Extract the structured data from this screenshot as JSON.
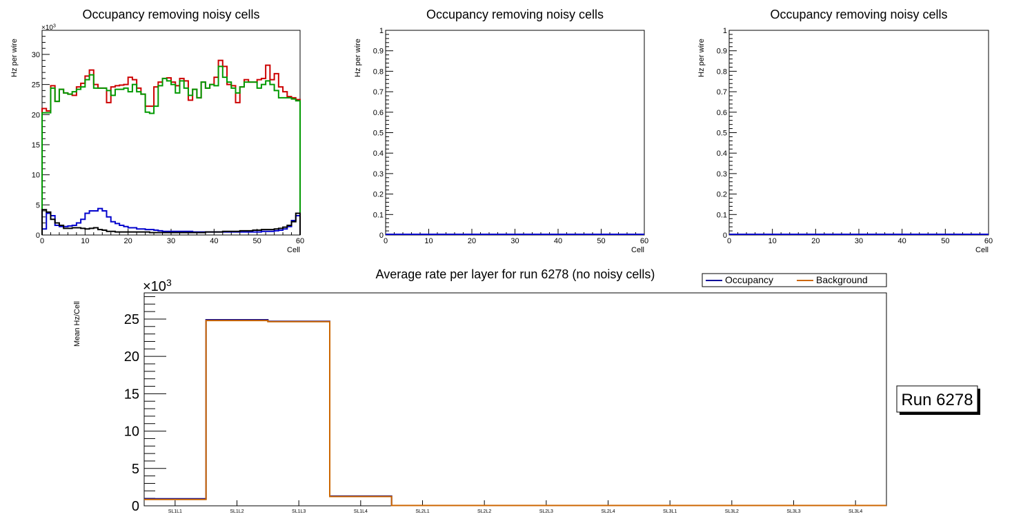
{
  "chart_data": [
    {
      "type": "step",
      "title": "Occupancy removing noisy cells",
      "xlabel": "Cell",
      "ylabel": "Hz per wire",
      "exponent_label": "×10",
      "exponent_sup": "3",
      "xlim": [
        0,
        60
      ],
      "ylim": [
        0,
        34
      ],
      "xticks": [
        0,
        10,
        20,
        30,
        40,
        50,
        60
      ],
      "yticks": [
        0,
        5,
        10,
        15,
        20,
        25,
        30
      ],
      "series": [
        {
          "name": "red",
          "color": "#cc0000",
          "bin_width": 1,
          "x_start": 0,
          "values": [
            21.0,
            20.6,
            24.8,
            22.2,
            24.2,
            23.6,
            23.4,
            23.2,
            24.6,
            25.2,
            26.4,
            27.4,
            25.0,
            24.4,
            24.4,
            22.0,
            24.6,
            24.8,
            24.9,
            25.0,
            26.2,
            25.8,
            24.4,
            23.4,
            21.4,
            21.4,
            24.6,
            25.4,
            26.0,
            26.1,
            25.4,
            24.8,
            26.0,
            25.6,
            22.4,
            24.2,
            22.8,
            25.4,
            24.4,
            25.0,
            26.2,
            29.0,
            28.0,
            25.0,
            24.8,
            22.0,
            24.6,
            25.8,
            25.4,
            25.4,
            25.8,
            26.0,
            28.2,
            25.8,
            26.8,
            24.6,
            23.8,
            23.0,
            22.8,
            22.5
          ]
        },
        {
          "name": "green",
          "color": "#009900",
          "bin_width": 1,
          "x_start": 0,
          "values": [
            20.3,
            20.3,
            24.4,
            22.2,
            24.2,
            23.6,
            23.4,
            23.8,
            24.2,
            24.6,
            25.8,
            26.6,
            24.4,
            24.4,
            24.4,
            24.0,
            23.2,
            24.2,
            24.2,
            24.4,
            23.8,
            25.0,
            23.8,
            23.4,
            20.4,
            20.2,
            21.4,
            24.8,
            26.0,
            25.6,
            25.0,
            23.6,
            25.6,
            24.4,
            23.2,
            24.2,
            22.8,
            25.4,
            24.4,
            25.0,
            24.8,
            28.0,
            26.2,
            25.4,
            24.4,
            23.6,
            24.6,
            25.4,
            25.4,
            25.4,
            24.4,
            25.0,
            25.6,
            25.0,
            24.0,
            22.8,
            22.8,
            22.8,
            22.6,
            22.3
          ]
        },
        {
          "name": "blue",
          "color": "#0000cc",
          "bin_width": 1,
          "x_start": 0,
          "values": [
            1.0,
            3.6,
            3.2,
            1.6,
            1.4,
            1.4,
            1.5,
            1.6,
            2.0,
            2.6,
            3.6,
            4.0,
            4.0,
            4.4,
            4.0,
            3.0,
            2.2,
            1.9,
            1.6,
            1.4,
            1.2,
            1.2,
            1.0,
            1.0,
            0.9,
            0.9,
            0.8,
            0.7,
            0.6,
            0.6,
            0.6,
            0.6,
            0.6,
            0.6,
            0.6,
            0.5,
            0.5,
            0.5,
            0.5,
            0.5,
            0.5,
            0.5,
            0.5,
            0.5,
            0.5,
            0.5,
            0.5,
            0.5,
            0.5,
            0.5,
            0.5,
            0.6,
            0.6,
            0.6,
            0.7,
            0.8,
            1.0,
            1.4,
            2.4,
            3.2
          ]
        },
        {
          "name": "black",
          "color": "#000000",
          "bin_width": 1,
          "x_start": 0,
          "values": [
            4.2,
            3.8,
            2.6,
            2.0,
            1.6,
            1.1,
            1.1,
            1.2,
            1.2,
            1.1,
            1.0,
            1.1,
            1.2,
            0.9,
            0.8,
            0.6,
            0.6,
            0.5,
            0.5,
            0.5,
            0.5,
            0.5,
            0.5,
            0.5,
            0.5,
            0.4,
            0.4,
            0.4,
            0.4,
            0.4,
            0.4,
            0.4,
            0.4,
            0.4,
            0.4,
            0.4,
            0.4,
            0.4,
            0.5,
            0.5,
            0.5,
            0.5,
            0.6,
            0.6,
            0.6,
            0.6,
            0.7,
            0.7,
            0.7,
            0.8,
            0.8,
            0.9,
            0.9,
            0.9,
            1.0,
            1.1,
            1.3,
            1.6,
            2.2,
            3.6
          ]
        }
      ]
    },
    {
      "type": "step",
      "title": "Occupancy removing noisy cells",
      "xlabel": "Cell",
      "ylabel": "Hz per wire",
      "xlim": [
        0,
        60
      ],
      "ylim": [
        0,
        1
      ],
      "xticks": [
        0,
        10,
        20,
        30,
        40,
        50,
        60
      ],
      "yticks": [
        0,
        0.1,
        0.2,
        0.3,
        0.4,
        0.5,
        0.6,
        0.7,
        0.8,
        0.9,
        1
      ],
      "ytick_labels": [
        "0",
        "0.1",
        "0.2",
        "0.3",
        "0.4",
        "0.5",
        "0.6",
        "0.7",
        "0.8",
        "0.9",
        "1"
      ],
      "series": [
        {
          "name": "blue",
          "color": "#0000cc",
          "values": [
            0,
            0
          ]
        }
      ]
    },
    {
      "type": "step",
      "title": "Occupancy removing noisy cells",
      "xlabel": "Cell",
      "ylabel": "Hz per wire",
      "xlim": [
        0,
        60
      ],
      "ylim": [
        0,
        1
      ],
      "xticks": [
        0,
        10,
        20,
        30,
        40,
        50,
        60
      ],
      "yticks": [
        0,
        0.1,
        0.2,
        0.3,
        0.4,
        0.5,
        0.6,
        0.7,
        0.8,
        0.9,
        1
      ],
      "ytick_labels": [
        "0",
        "0.1",
        "0.2",
        "0.3",
        "0.4",
        "0.5",
        "0.6",
        "0.7",
        "0.8",
        "0.9",
        "1"
      ],
      "series": [
        {
          "name": "blue",
          "color": "#0000cc",
          "values": [
            0,
            0
          ]
        }
      ]
    },
    {
      "type": "step",
      "title": "Average rate per layer for run 6278 (no noisy cells)",
      "ylabel": "Mean Hz/Cell",
      "exponent_label": "×10",
      "exponent_sup": "3",
      "categories": [
        "SL1L1",
        "SL1L2",
        "SL1L3",
        "SL1L4",
        "SL2L1",
        "SL2L2",
        "SL2L3",
        "SL2L4",
        "SL3L1",
        "SL3L2",
        "SL3L3",
        "SL3L4"
      ],
      "ylim": [
        0,
        28.5
      ],
      "yticks": [
        0,
        5,
        10,
        15,
        20,
        25
      ],
      "legend": {
        "placement": "top-right",
        "entries": [
          {
            "label": "Occupancy",
            "color": "#000099"
          },
          {
            "label": "Background",
            "color": "#cc6600"
          }
        ]
      },
      "series": [
        {
          "name": "Occupancy",
          "color": "#000099",
          "values": [
            0.95,
            24.9,
            24.7,
            1.3,
            0.05,
            0.05,
            0.05,
            0.05,
            0.05,
            0.05,
            0.05,
            0.05
          ]
        },
        {
          "name": "Background",
          "color": "#cc6600",
          "values": [
            0.85,
            24.8,
            24.65,
            1.25,
            0.05,
            0.05,
            0.05,
            0.05,
            0.05,
            0.05,
            0.05,
            0.05
          ]
        }
      ]
    }
  ],
  "run_label": "Run 6278"
}
